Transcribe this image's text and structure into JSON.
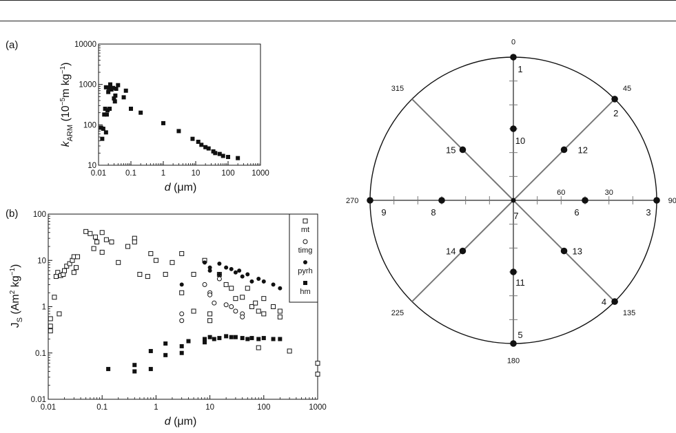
{
  "panel_labels": {
    "a": "(a)",
    "b": "(b)"
  },
  "chart_data": [
    {
      "type": "scatter",
      "panel": "(a)",
      "xlabel": "d (μm)",
      "ylabel": "k_ARM (10^-5 m kg^-1)",
      "xscale": "log",
      "yscale": "log",
      "xlim": [
        0.01,
        1000
      ],
      "ylim": [
        10,
        10000
      ],
      "xticks": [
        "0.01",
        "0.1",
        "1",
        "10",
        "100",
        "1000"
      ],
      "yticks": [
        "10",
        "100",
        "1000",
        "10000"
      ],
      "marker": "filled-square",
      "points": [
        [
          0.012,
          85
        ],
        [
          0.013,
          45
        ],
        [
          0.014,
          80
        ],
        [
          0.015,
          180
        ],
        [
          0.016,
          250
        ],
        [
          0.017,
          65
        ],
        [
          0.017,
          850
        ],
        [
          0.018,
          180
        ],
        [
          0.019,
          230
        ],
        [
          0.02,
          650
        ],
        [
          0.021,
          820
        ],
        [
          0.022,
          250
        ],
        [
          0.023,
          1000
        ],
        [
          0.025,
          750
        ],
        [
          0.028,
          820
        ],
        [
          0.03,
          450
        ],
        [
          0.032,
          380
        ],
        [
          0.033,
          530
        ],
        [
          0.035,
          780
        ],
        [
          0.04,
          960
        ],
        [
          0.06,
          480
        ],
        [
          0.07,
          700
        ],
        [
          0.1,
          250
        ],
        [
          0.2,
          200
        ],
        [
          1,
          110
        ],
        [
          3,
          70
        ],
        [
          8,
          45
        ],
        [
          12,
          38
        ],
        [
          15,
          32
        ],
        [
          20,
          28
        ],
        [
          25,
          26
        ],
        [
          35,
          22
        ],
        [
          40,
          20
        ],
        [
          55,
          19
        ],
        [
          70,
          17
        ],
        [
          100,
          16
        ],
        [
          200,
          15
        ]
      ]
    },
    {
      "type": "scatter",
      "panel": "(b)",
      "xlabel": "d (μm)",
      "ylabel": "J_S (Am^2 kg^-1)",
      "xscale": "log",
      "yscale": "log",
      "xlim": [
        0.01,
        1000
      ],
      "ylim": [
        0.01,
        100
      ],
      "xticks": [
        "0.01",
        "0.1",
        "1",
        "10",
        "100",
        "1000"
      ],
      "yticks": [
        "0.01",
        "0.1",
        "1",
        "10",
        "100"
      ],
      "legend_position": "top-right",
      "series": [
        {
          "name": "mt",
          "marker": "open-square",
          "points": [
            [
              0.011,
              0.55
            ],
            [
              0.011,
              0.38
            ],
            [
              0.011,
              0.3
            ],
            [
              0.013,
              1.6
            ],
            [
              0.014,
              4.5
            ],
            [
              0.015,
              5.5
            ],
            [
              0.016,
              0.7
            ],
            [
              0.017,
              4.7
            ],
            [
              0.019,
              5.0
            ],
            [
              0.02,
              6.0
            ],
            [
              0.022,
              7.5
            ],
            [
              0.025,
              8.5
            ],
            [
              0.028,
              10
            ],
            [
              0.03,
              12
            ],
            [
              0.03,
              5.5
            ],
            [
              0.033,
              7
            ],
            [
              0.035,
              12
            ],
            [
              0.05,
              42
            ],
            [
              0.06,
              38
            ],
            [
              0.07,
              18
            ],
            [
              0.075,
              32
            ],
            [
              0.08,
              25
            ],
            [
              0.1,
              40
            ],
            [
              0.1,
              15
            ],
            [
              0.12,
              28
            ],
            [
              0.15,
              25
            ],
            [
              0.2,
              9
            ],
            [
              0.3,
              20
            ],
            [
              0.4,
              30
            ],
            [
              0.4,
              25
            ],
            [
              0.5,
              5
            ],
            [
              0.7,
              4.5
            ],
            [
              0.8,
              14
            ],
            [
              1,
              10
            ],
            [
              1.5,
              5
            ],
            [
              2,
              9
            ],
            [
              3,
              14
            ],
            [
              3,
              2
            ],
            [
              5,
              5
            ],
            [
              5,
              0.8
            ],
            [
              8,
              10
            ],
            [
              10,
              0.7
            ],
            [
              10,
              0.5
            ],
            [
              15,
              5
            ],
            [
              20,
              3
            ],
            [
              25,
              2.5
            ],
            [
              30,
              1.5
            ],
            [
              40,
              1.6
            ],
            [
              50,
              2.5
            ],
            [
              60,
              1
            ],
            [
              70,
              1.2
            ],
            [
              80,
              0.8
            ],
            [
              100,
              1.5
            ],
            [
              100,
              0.7
            ],
            [
              150,
              1
            ],
            [
              200,
              0.8
            ],
            [
              200,
              0.6
            ],
            [
              300,
              0.11
            ],
            [
              80,
              0.13
            ],
            [
              1000,
              0.06
            ],
            [
              1000,
              0.035
            ]
          ]
        },
        {
          "name": "timg",
          "marker": "open-circle",
          "points": [
            [
              3,
              0.7
            ],
            [
              3,
              0.5
            ],
            [
              8,
              3
            ],
            [
              10,
              2
            ],
            [
              10,
              1.8
            ],
            [
              12,
              1.2
            ],
            [
              15,
              4
            ],
            [
              20,
              1.1
            ],
            [
              25,
              1.0
            ],
            [
              30,
              0.8
            ],
            [
              40,
              0.7
            ],
            [
              40,
              0.6
            ]
          ]
        },
        {
          "name": "pyrh",
          "marker": "filled-circle",
          "points": [
            [
              3,
              3
            ],
            [
              8,
              9
            ],
            [
              10,
              7
            ],
            [
              10,
              6
            ],
            [
              15,
              8.5
            ],
            [
              15,
              5
            ],
            [
              20,
              7
            ],
            [
              25,
              6.5
            ],
            [
              30,
              5.5
            ],
            [
              35,
              6
            ],
            [
              40,
              4.5
            ],
            [
              50,
              5
            ],
            [
              60,
              3.5
            ],
            [
              80,
              4
            ],
            [
              100,
              3.5
            ],
            [
              150,
              3
            ],
            [
              200,
              2.5
            ]
          ]
        },
        {
          "name": "hm",
          "marker": "filled-square",
          "points": [
            [
              0.13,
              0.045
            ],
            [
              0.4,
              0.04
            ],
            [
              0.4,
              0.055
            ],
            [
              0.8,
              0.045
            ],
            [
              0.8,
              0.11
            ],
            [
              1.5,
              0.09
            ],
            [
              1.5,
              0.16
            ],
            [
              3,
              0.1
            ],
            [
              3,
              0.14
            ],
            [
              4,
              0.18
            ],
            [
              8,
              0.2
            ],
            [
              8,
              0.17
            ],
            [
              10,
              0.22
            ],
            [
              12,
              0.2
            ],
            [
              15,
              0.21
            ],
            [
              20,
              0.23
            ],
            [
              25,
              0.22
            ],
            [
              30,
              0.22
            ],
            [
              40,
              0.21
            ],
            [
              50,
              0.2
            ],
            [
              60,
              0.21
            ],
            [
              80,
              0.2
            ],
            [
              100,
              0.21
            ],
            [
              150,
              0.2
            ],
            [
              200,
              0.2
            ]
          ]
        }
      ]
    },
    {
      "type": "polar",
      "panel": "diagram",
      "angle_labels": [
        {
          "text": "0",
          "angle": 0
        },
        {
          "text": "45",
          "angle": 45
        },
        {
          "text": "90",
          "angle": 90
        },
        {
          "text": "135",
          "angle": 135
        },
        {
          "text": "180",
          "angle": 180
        },
        {
          "text": "225",
          "angle": 225
        },
        {
          "text": "270",
          "angle": 270
        },
        {
          "text": "315",
          "angle": 315
        }
      ],
      "spoke_angles": [
        0,
        45,
        90,
        135,
        180,
        225,
        270,
        315
      ],
      "ring_labels": [
        {
          "text": "30",
          "angle": 90,
          "radius": 0.667
        },
        {
          "text": "60",
          "angle": 90,
          "radius": 0.333
        }
      ],
      "points": [
        {
          "label": "1",
          "angle": 0,
          "radius": 1.0
        },
        {
          "label": "2",
          "angle": 45,
          "radius": 1.0
        },
        {
          "label": "3",
          "angle": 90,
          "radius": 1.0
        },
        {
          "label": "4",
          "angle": 135,
          "radius": 1.0
        },
        {
          "label": "5",
          "angle": 180,
          "radius": 1.0
        },
        {
          "label": "6",
          "angle": 90,
          "radius": 0.5
        },
        {
          "label": "7",
          "angle": 0,
          "radius": 0.0
        },
        {
          "label": "8",
          "angle": 270,
          "radius": 0.5
        },
        {
          "label": "9",
          "angle": 270,
          "radius": 1.0
        },
        {
          "label": "10",
          "angle": 0,
          "radius": 0.5
        },
        {
          "label": "11",
          "angle": 180,
          "radius": 0.5
        },
        {
          "label": "12",
          "angle": 45,
          "radius": 0.5
        },
        {
          "label": "13",
          "angle": 135,
          "radius": 0.5
        },
        {
          "label": "14",
          "angle": 225,
          "radius": 0.5
        },
        {
          "label": "15",
          "angle": 315,
          "radius": 0.5
        }
      ]
    }
  ]
}
